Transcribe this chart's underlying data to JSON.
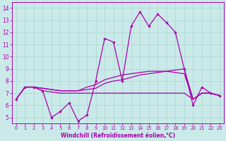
{
  "xlabel": "Windchill (Refroidissement éolien,°C)",
  "background_color": "#caeaea",
  "grid_color": "#b0d8d0",
  "line_color": "#aa00aa",
  "xlim": [
    -0.5,
    23.5
  ],
  "ylim": [
    4.5,
    14.5
  ],
  "yticks": [
    5,
    6,
    7,
    8,
    9,
    10,
    11,
    12,
    13,
    14
  ],
  "xticks": [
    0,
    1,
    2,
    3,
    4,
    5,
    6,
    7,
    8,
    9,
    10,
    11,
    12,
    13,
    14,
    15,
    16,
    17,
    18,
    19,
    20,
    21,
    22,
    23
  ],
  "jagged": [
    6.5,
    7.5,
    7.5,
    7.2,
    5.0,
    5.5,
    6.2,
    4.7,
    5.2,
    8.0,
    11.5,
    11.2,
    8.0,
    12.5,
    13.7,
    12.5,
    13.5,
    12.8,
    12.0,
    9.0,
    6.0,
    7.5,
    7.0,
    6.8
  ],
  "smooth1": [
    6.5,
    7.5,
    7.5,
    7.4,
    7.3,
    7.2,
    7.2,
    7.2,
    7.3,
    7.4,
    7.8,
    8.0,
    8.1,
    8.3,
    8.5,
    8.6,
    8.7,
    8.8,
    8.9,
    9.0,
    6.5,
    7.0,
    7.0,
    6.8
  ],
  "smooth2": [
    6.5,
    7.5,
    7.5,
    7.4,
    7.3,
    7.2,
    7.2,
    7.2,
    7.5,
    7.7,
    8.1,
    8.3,
    8.5,
    8.6,
    8.7,
    8.8,
    8.8,
    8.8,
    8.7,
    8.6,
    6.5,
    7.0,
    7.0,
    6.8
  ],
  "smooth3": [
    6.5,
    7.5,
    7.5,
    7.2,
    7.1,
    7.0,
    7.0,
    7.0,
    7.0,
    7.0,
    7.0,
    7.0,
    7.0,
    7.0,
    7.0,
    7.0,
    7.0,
    7.0,
    7.0,
    7.0,
    6.5,
    7.0,
    7.0,
    6.8
  ]
}
